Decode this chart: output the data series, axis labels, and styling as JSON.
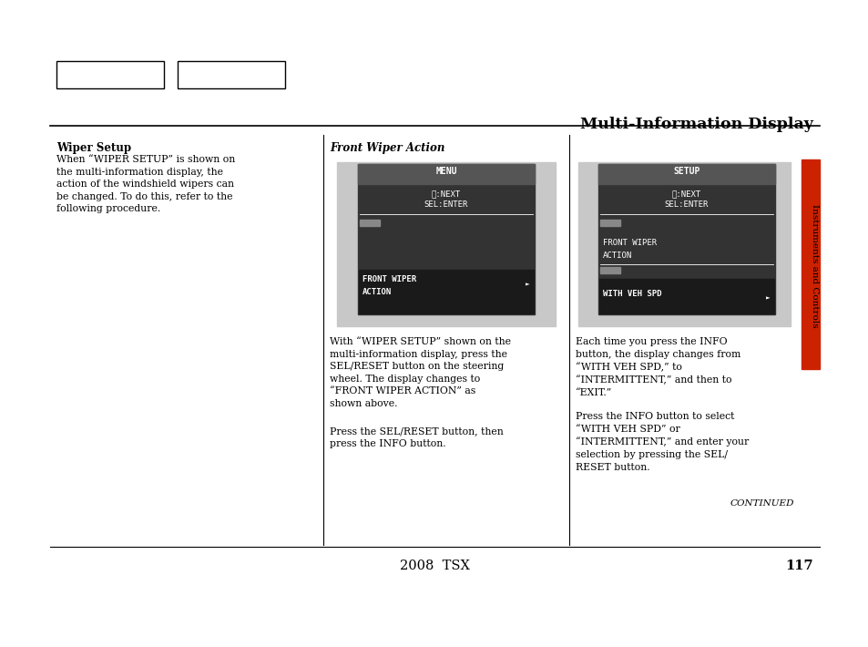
{
  "page_title": "Multi-Information Display",
  "page_number": "117",
  "footer_text": "2008  TSX",
  "bg_color": "#ffffff",
  "section_title": "Wiper Setup",
  "section_body": "When “WIPER SETUP” is shown on\nthe multi-information display, the\naction of the windshield wipers can\nbe changed. To do this, refer to the\nfollowing procedure.",
  "col2_title": "Front Wiper Action",
  "col2_body1": "With “WIPER SETUP” shown on the\nmulti-information display, press the\nSEL/RESET button on the steering\nwheel. The display changes to\n“FRONT WIPER ACTION” as\nshown above.",
  "col2_body2": "Press the SEL/RESET button, then\npress the INFO button.",
  "col3_body1": "Each time you press the INFO\nbutton, the display changes from\n“WITH VEH SPD,” to\n“INTERMITTENT,” and then to\n“EXIT.”",
  "col3_body2": "Press the INFO button to select\n“WITH VEH SPD” or\n“INTERMITTENT,” and enter your\nselection by pressing the SEL/\nRESET button.",
  "col3_continued": "CONTINUED",
  "sidebar_color": "#cc2200",
  "sidebar_text": "Instruments and Controls",
  "screen_bg": "#c8c8c8",
  "display_dark": "#333333",
  "menu_header_bg": "#555555",
  "highlight_bg": "#1a1a1a",
  "display_text": "#ffffff"
}
